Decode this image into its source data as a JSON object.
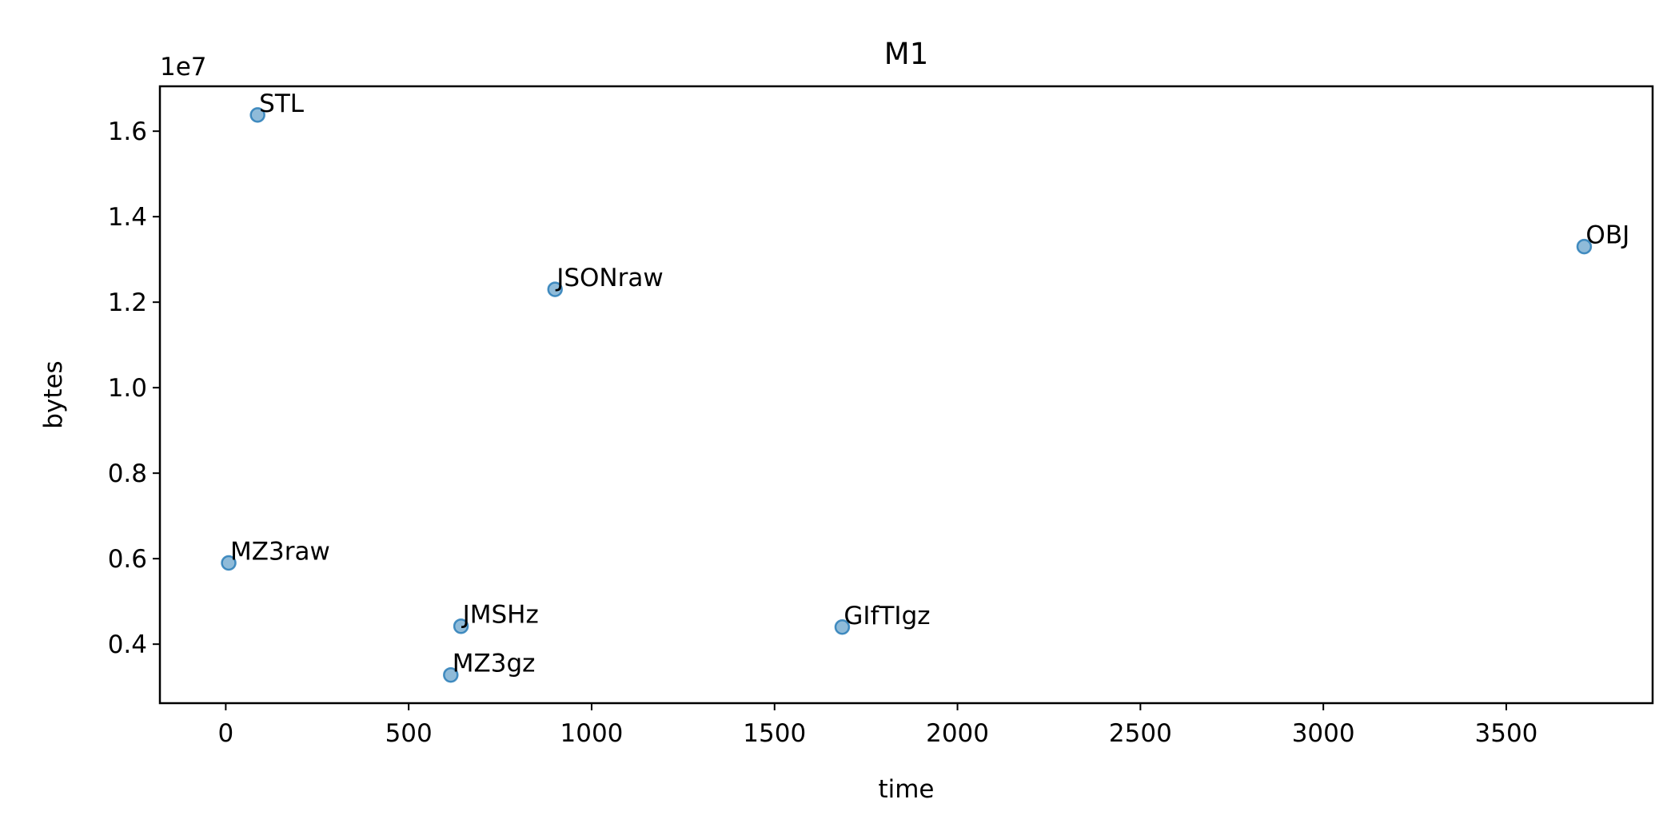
{
  "chart_data": {
    "type": "scatter",
    "title": "M1",
    "xlabel": "time",
    "ylabel": "bytes",
    "y_offset_label": "1e7",
    "xlim": [
      -180,
      3900
    ],
    "ylim": [
      2620000,
      17050000
    ],
    "x_ticks": [
      0,
      500,
      1000,
      1500,
      2000,
      2500,
      3000,
      3500
    ],
    "x_tick_labels": [
      "0",
      "500",
      "1000",
      "1500",
      "2000",
      "2500",
      "3000",
      "3500"
    ],
    "y_ticks": [
      4000000,
      6000000,
      8000000,
      10000000,
      12000000,
      14000000,
      16000000
    ],
    "y_tick_labels": [
      "0.4",
      "0.6",
      "0.8",
      "1.0",
      "1.2",
      "1.4",
      "1.6"
    ],
    "grid": false,
    "marker_color": "#1f77b4",
    "marker_alpha": 0.5,
    "points": [
      {
        "label": "STL",
        "x": 87,
        "y": 16380000
      },
      {
        "label": "OBJ",
        "x": 3713,
        "y": 13300000
      },
      {
        "label": "JSONraw",
        "x": 900,
        "y": 12300000
      },
      {
        "label": "MZ3raw",
        "x": 8,
        "y": 5900000
      },
      {
        "label": "JMSHz",
        "x": 643,
        "y": 4420000
      },
      {
        "label": "GIfTIgz",
        "x": 1685,
        "y": 4400000
      },
      {
        "label": "MZ3gz",
        "x": 615,
        "y": 3280000
      }
    ]
  }
}
